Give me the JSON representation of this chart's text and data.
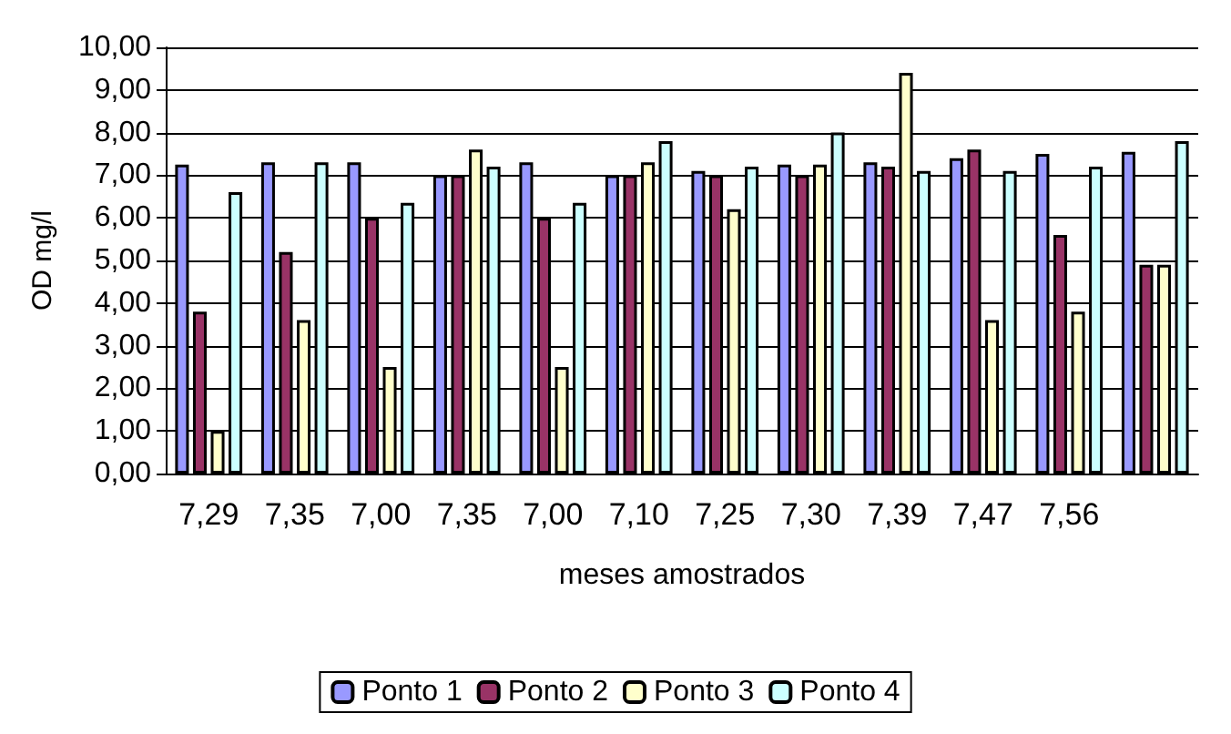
{
  "chart_data": {
    "type": "bar",
    "xlabel": "meses amostrados",
    "ylabel": "OD mg/l",
    "categories": [
      "7,29",
      "7,35",
      "7,00",
      "7,35",
      "7,00",
      "7,10",
      "7,25",
      "7,30",
      "7,39",
      "7,47",
      "7,56",
      null
    ],
    "series": [
      {
        "name": "Ponto 1",
        "color": "#9999ff",
        "values": [
          7.25,
          7.3,
          7.3,
          7.0,
          7.3,
          7.0,
          7.1,
          7.25,
          7.3,
          7.4,
          7.5,
          7.55
        ]
      },
      {
        "name": "Ponto 2",
        "color": "#993366",
        "values": [
          3.8,
          5.2,
          6.0,
          7.0,
          6.0,
          7.0,
          7.0,
          7.0,
          7.2,
          7.6,
          5.6,
          4.9
        ]
      },
      {
        "name": "Ponto 3",
        "color": "#ffffcc",
        "values": [
          1.0,
          3.6,
          2.5,
          7.6,
          2.5,
          7.3,
          6.2,
          7.25,
          9.4,
          3.6,
          3.8,
          4.9
        ]
      },
      {
        "name": "Ponto 4",
        "color": "#ccffff",
        "values": [
          6.6,
          7.3,
          6.35,
          7.2,
          6.35,
          7.8,
          7.2,
          8.0,
          7.1,
          7.1,
          7.2,
          7.8
        ]
      }
    ],
    "ylim": [
      0,
      10
    ],
    "yticks": [
      {
        "value": 0,
        "label": "0,00"
      },
      {
        "value": 1,
        "label": "1,00"
      },
      {
        "value": 2,
        "label": "2,00"
      },
      {
        "value": 3,
        "label": "3,00"
      },
      {
        "value": 4,
        "label": "4,00"
      },
      {
        "value": 5,
        "label": "5,00"
      },
      {
        "value": 6,
        "label": "6,00"
      },
      {
        "value": 7,
        "label": "7,00"
      },
      {
        "value": 8,
        "label": "8,00"
      },
      {
        "value": 9,
        "label": "9,00"
      },
      {
        "value": 10,
        "label": "10,00"
      }
    ],
    "grid": "y",
    "legend": "bottom"
  }
}
